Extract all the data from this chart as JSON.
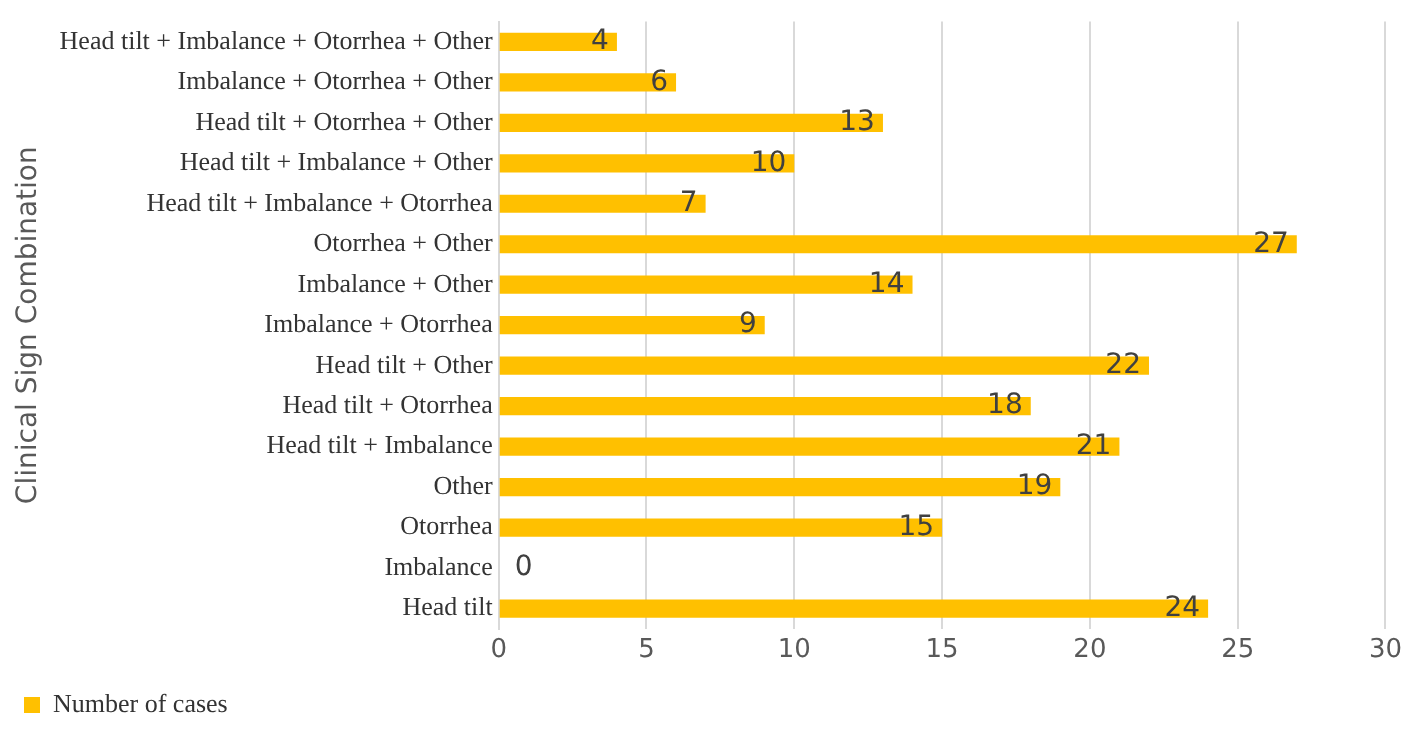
{
  "chart_data": {
    "type": "bar",
    "orientation": "horizontal",
    "ylabel": "Clinical Sign Combination",
    "categories": [
      "Head tilt + Imbalance + Otorrhea + Other",
      "Imbalance + Otorrhea + Other",
      "Head tilt + Otorrhea + Other",
      "Head tilt + Imbalance + Other",
      "Head tilt + Imbalance + Otorrhea",
      "Otorrhea + Other",
      "Imbalance + Other",
      "Imbalance + Otorrhea",
      "Head tilt + Other",
      "Head tilt + Otorrhea",
      "Head tilt + Imbalance",
      "Other",
      "Otorrhea",
      "Imbalance",
      "Head tilt"
    ],
    "series": [
      {
        "name": "Number of cases",
        "color": "#ffc000",
        "values": [
          4,
          6,
          13,
          10,
          7,
          27,
          14,
          9,
          22,
          18,
          21,
          19,
          15,
          0,
          24
        ]
      }
    ],
    "xlim": [
      0,
      30
    ],
    "xticks": [
      0,
      5,
      10,
      15,
      20,
      25,
      30
    ],
    "grid": "x",
    "legend": "bottom left",
    "data_labels": true
  }
}
